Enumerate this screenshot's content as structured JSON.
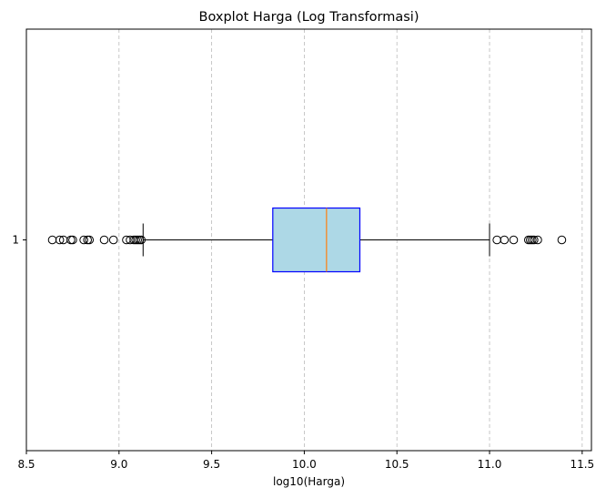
{
  "chart_data": {
    "type": "boxplot",
    "orientation": "horizontal",
    "title": "Boxplot Harga (Log Transformasi)",
    "xlabel": "log10(Harga)",
    "ylabel": "",
    "xlim": [
      8.5,
      11.55
    ],
    "xticks": [
      8.5,
      9.0,
      9.5,
      10.0,
      10.5,
      11.0,
      11.5
    ],
    "xtick_labels": [
      "8.5",
      "9.0",
      "9.5",
      "10.0",
      "10.5",
      "11.0",
      "11.5"
    ],
    "yticks": [
      1
    ],
    "ytick_labels": [
      "1"
    ],
    "grid": {
      "x": true,
      "y": false,
      "style": "dashed"
    },
    "boxes": [
      {
        "position": 1,
        "whisker_low": 9.13,
        "q1": 9.83,
        "median": 10.12,
        "q3": 10.3,
        "whisker_high": 11.0,
        "outliers": [
          8.64,
          8.68,
          8.7,
          8.74,
          8.75,
          8.81,
          8.83,
          8.84,
          8.92,
          8.97,
          9.04,
          9.06,
          9.08,
          9.09,
          9.1,
          9.11,
          9.12,
          11.04,
          11.08,
          11.13,
          11.21,
          11.22,
          11.23,
          11.24,
          11.26,
          11.39
        ]
      }
    ],
    "colors": {
      "box_fill": "#add8e6",
      "box_edge": "#0000ff",
      "median": "#ff7f0e",
      "whisker": "#000000",
      "grid": "#bbbbbb"
    }
  }
}
